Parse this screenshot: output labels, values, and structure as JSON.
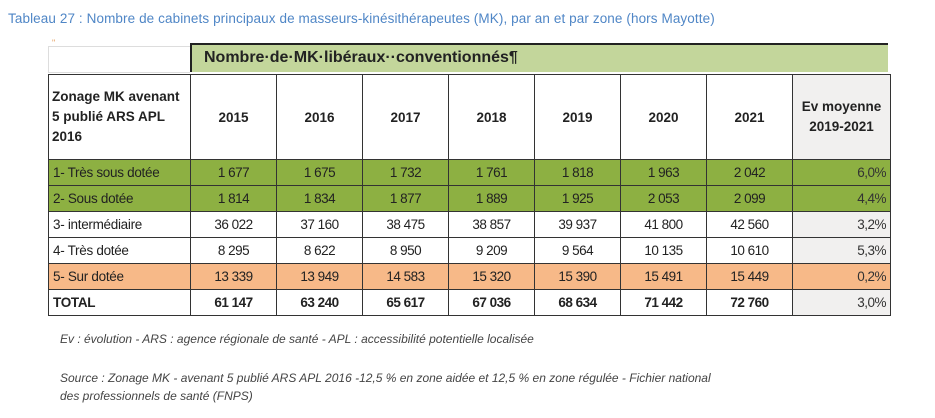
{
  "title": "Tableau 27 : Nombre de cabinets principaux de masseurs-kinésithérapeutes (MK), par an et par zone (hors Mayotte)",
  "mark": "\"",
  "band": "Nombre·de·MK·libéraux··conventionnés¶",
  "header": {
    "zone": "Zonage MK avenant 5 publié ARS APL 2016",
    "years": [
      "2015",
      "2016",
      "2017",
      "2018",
      "2019",
      "2020",
      "2021"
    ],
    "ev": "Ev moyenne 2019-2021"
  },
  "rows": [
    {
      "label": "1- Très sous dotée",
      "values": [
        "1 677",
        "1 675",
        "1 732",
        "1 761",
        "1 818",
        "1 963",
        "2 042"
      ],
      "ev": "6,0%",
      "color": "#8db042"
    },
    {
      "label": "2- Sous dotée",
      "values": [
        "1 814",
        "1 834",
        "1 877",
        "1 889",
        "1 925",
        "2 053",
        "2 099"
      ],
      "ev": "4,4%",
      "color": "#8db042"
    },
    {
      "label": "3- intermédiaire",
      "values": [
        "36 022",
        "37 160",
        "38 475",
        "38 857",
        "39 937",
        "41 800",
        "42 560"
      ],
      "ev": "3,2%"
    },
    {
      "label": "4- Très dotée",
      "values": [
        "8 295",
        "8 622",
        "8 950",
        "9 209",
        "9 564",
        "10 135",
        "10 610"
      ],
      "ev": "5,3%"
    },
    {
      "label": "5- Sur dotée",
      "values": [
        "13 339",
        "13 949",
        "14 583",
        "15 320",
        "15 390",
        "15 491",
        "15 449"
      ],
      "ev": "0,2%",
      "color": "#f7b988"
    },
    {
      "label": "TOTAL",
      "values": [
        "61 147",
        "63 240",
        "65 617",
        "67 036",
        "68 634",
        "71 442",
        "72 760"
      ],
      "ev": "3,0%"
    }
  ],
  "notes": {
    "abbrev": "Ev : évolution - ARS : agence régionale de santé - APL : accessibilité potentielle localisée",
    "source1": "Source : Zonage MK - avenant 5 publié ARS APL 2016 -12,5 % en zone aidée et 12,5 % en zone régulée - Fichier national",
    "source2": "des professionnels de santé (FNPS)"
  }
}
